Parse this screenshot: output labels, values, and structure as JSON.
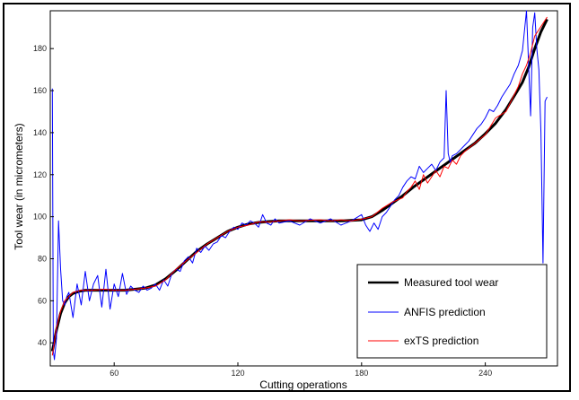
{
  "chart_data": {
    "type": "line",
    "title": "",
    "xlabel": "Cutting operations",
    "ylabel": "Tool wear (in micrometers)",
    "xlim": [
      29,
      275
    ],
    "ylim": [
      29,
      198
    ],
    "xticks": [
      60,
      120,
      180,
      240
    ],
    "yticks": [
      40,
      60,
      80,
      100,
      120,
      140,
      160,
      180
    ],
    "grid": false,
    "legend_position": "bottom-right",
    "colors": {
      "measured": "#000000",
      "anfis": "#0000ff",
      "exts": "#ff0000"
    },
    "series": [
      {
        "name": "Measured tool wear",
        "x": [
          30,
          32,
          34,
          36,
          38,
          40,
          43,
          46,
          50,
          55,
          60,
          65,
          70,
          75,
          80,
          85,
          90,
          95,
          100,
          105,
          110,
          115,
          120,
          125,
          130,
          135,
          140,
          145,
          150,
          160,
          170,
          180,
          185,
          190,
          195,
          200,
          205,
          210,
          215,
          220,
          225,
          230,
          235,
          240,
          245,
          250,
          255,
          258,
          261,
          264,
          267,
          270
        ],
        "y": [
          36,
          46,
          54,
          59,
          62,
          63.5,
          64.5,
          65,
          65,
          65,
          65,
          65,
          65.5,
          66,
          67.5,
          70.5,
          74.5,
          79,
          83.5,
          87,
          90,
          93,
          95,
          96.5,
          97.3,
          97.7,
          98,
          98,
          98,
          98,
          98,
          98.5,
          100,
          103,
          106.5,
          110,
          114,
          117.5,
          121,
          124.5,
          128,
          131.5,
          135,
          139.5,
          144.5,
          151,
          159,
          164,
          171,
          180,
          188,
          194
        ]
      },
      {
        "name": "ANFIS prediction",
        "x": [
          30,
          30.5,
          31,
          32,
          33,
          34,
          35,
          36,
          37,
          38,
          40,
          42,
          44,
          46,
          48,
          50,
          52,
          54,
          56,
          58,
          60,
          62,
          64,
          66,
          68,
          70,
          72,
          74,
          76,
          78,
          80,
          82,
          84,
          86,
          88,
          90,
          92,
          94,
          96,
          98,
          100,
          102,
          104,
          106,
          108,
          110,
          112,
          114,
          116,
          118,
          120,
          122,
          124,
          126,
          128,
          130,
          132,
          134,
          136,
          138,
          140,
          145,
          150,
          155,
          160,
          165,
          170,
          175,
          180,
          182,
          184,
          186,
          188,
          190,
          192,
          194,
          196,
          198,
          200,
          202,
          204,
          206,
          208,
          210,
          212,
          214,
          216,
          218,
          220,
          221,
          222,
          223,
          224,
          226,
          228,
          230,
          232,
          234,
          236,
          238,
          240,
          242,
          244,
          246,
          248,
          250,
          252,
          254,
          256,
          258,
          260,
          262,
          263,
          264,
          265,
          266,
          267,
          268,
          269,
          270
        ],
        "y": [
          161,
          36,
          32,
          42,
          98,
          75,
          60,
          58,
          62,
          64,
          52,
          68,
          58,
          74,
          60,
          68,
          72,
          57,
          75,
          56,
          68,
          62,
          73,
          63,
          67,
          65,
          64,
          67,
          65,
          66,
          68,
          65,
          70,
          67,
          73,
          75,
          74,
          79,
          81,
          78,
          85,
          83,
          86,
          84,
          87,
          88,
          91,
          90,
          93,
          95,
          94,
          97,
          96,
          98,
          97,
          95,
          101,
          97,
          96,
          99,
          97,
          98,
          96,
          99,
          97,
          99,
          96,
          98,
          101,
          96,
          93,
          97,
          94,
          100,
          102,
          105,
          108,
          110,
          114,
          117,
          119,
          118,
          124,
          121,
          123,
          125,
          122,
          126,
          128,
          160,
          130,
          126,
          129,
          130,
          132,
          134,
          136,
          139,
          142,
          144,
          147,
          151,
          150,
          153,
          157,
          160,
          163,
          168,
          172,
          179,
          198,
          148,
          190,
          197,
          180,
          170,
          140,
          78,
          155,
          157
        ]
      },
      {
        "name": "exTS prediction",
        "x": [
          30,
          32,
          34,
          36,
          38,
          40,
          42,
          44,
          46,
          48,
          50,
          55,
          60,
          65,
          70,
          75,
          80,
          85,
          90,
          95,
          100,
          105,
          110,
          115,
          120,
          125,
          130,
          135,
          140,
          145,
          150,
          155,
          160,
          165,
          170,
          175,
          180,
          185,
          190,
          195,
          200,
          202,
          204,
          206,
          208,
          210,
          212,
          214,
          216,
          218,
          220,
          222,
          224,
          226,
          228,
          230,
          235,
          240,
          245,
          250,
          254,
          256,
          258,
          260,
          262,
          264,
          266,
          268,
          270
        ],
        "y": [
          34,
          47,
          55,
          60,
          62,
          64,
          64.5,
          65,
          65,
          65,
          65,
          65.5,
          65,
          65,
          65.5,
          66,
          67,
          70,
          75,
          79,
          83,
          87,
          90,
          93,
          95,
          96,
          97.5,
          97.5,
          98,
          98.5,
          98,
          98.3,
          98.5,
          98,
          98.5,
          98,
          98.8,
          100,
          104,
          107,
          109,
          112,
          114,
          117,
          113,
          120,
          116,
          119,
          122,
          119,
          124,
          123,
          127,
          125,
          129,
          131,
          135,
          139,
          147,
          150,
          158,
          162,
          168,
          172,
          178,
          186,
          189,
          192,
          195
        ]
      }
    ]
  }
}
